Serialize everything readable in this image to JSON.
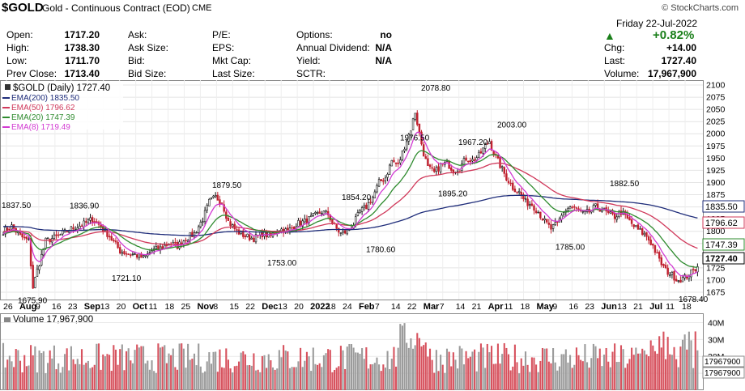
{
  "header": {
    "symbol": "$GOLD",
    "description": "Gold - Continuous Contract (EOD)",
    "exchange": "CME",
    "watermark": "© StockCharts.com",
    "date": "Friday  22-Jul-2022",
    "change_pct": "+0.82%",
    "up_color": "#1a7f1a"
  },
  "quote": {
    "col1": [
      [
        "Open:",
        "1717.20"
      ],
      [
        "High:",
        "1738.30"
      ],
      [
        "Low:",
        "1711.70"
      ],
      [
        "Prev Close:",
        "1713.40"
      ]
    ],
    "col2": [
      [
        "Ask:",
        ""
      ],
      [
        "Ask Size:",
        ""
      ],
      [
        "Bid:",
        ""
      ],
      [
        "Bid Size:",
        ""
      ]
    ],
    "col3": [
      [
        "P/E:",
        ""
      ],
      [
        "EPS:",
        ""
      ],
      [
        "Mkt Cap:",
        ""
      ],
      [
        "Last Size:",
        ""
      ]
    ],
    "col4": [
      [
        "Options:",
        "no"
      ],
      [
        "Annual Dividend:",
        "N/A"
      ],
      [
        "Yield:",
        "N/A"
      ],
      [
        "SCTR:",
        ""
      ]
    ],
    "col5": [
      [
        "Chg:",
        "+14.00"
      ],
      [
        "Last:",
        "1727.40"
      ],
      [
        "Volume:",
        "17,967,900"
      ]
    ]
  },
  "chart_data": {
    "type": "line",
    "title": "$GOLD (Daily) 1727.40",
    "y_ticks": [
      1675,
      1700,
      1725,
      1750,
      1775,
      1800,
      1825,
      1850,
      1875,
      1900,
      1925,
      1950,
      1975,
      2000,
      2025,
      2050,
      2075,
      2100
    ],
    "ylim": [
      1660,
      2110
    ],
    "x_labels": [
      "26",
      "Aug",
      "9",
      "16",
      "23",
      "Sep",
      "13",
      "20",
      "Oct",
      "11",
      "18",
      "25",
      "Nov",
      "8",
      "15",
      "22",
      "Dec",
      "13",
      "20",
      "2022",
      "18",
      "24",
      "Feb",
      "7",
      "14",
      "22",
      "Mar",
      "7",
      "14",
      "21",
      "Apr",
      "11",
      "18",
      "May",
      "9",
      "16",
      "23",
      "Jun",
      "13",
      "21",
      "Jul",
      "11",
      "18"
    ],
    "legend": [
      {
        "name": "$GOLD (Daily) 1727.40",
        "color": "#000000"
      },
      {
        "name": "EMA(200) 1835.50",
        "color": "#1f2d7a"
      },
      {
        "name": "EMA(50) 1796.62",
        "color": "#d0385a"
      },
      {
        "name": "EMA(20) 1747.39",
        "color": "#2e8b2e"
      },
      {
        "name": "EMA(8) 1719.49",
        "color": "#d23ad2"
      }
    ],
    "annotations": [
      {
        "label": "1837.50",
        "value": 1837.5
      },
      {
        "label": "1675.90",
        "value": 1675.9
      },
      {
        "label": "1836.90",
        "value": 1836.9
      },
      {
        "label": "1721.10",
        "value": 1721.1
      },
      {
        "label": "1879.50",
        "value": 1879.5
      },
      {
        "label": "1753.00",
        "value": 1753.0
      },
      {
        "label": "1854.20",
        "value": 1854.2
      },
      {
        "label": "1780.60",
        "value": 1780.6
      },
      {
        "label": "1976.50",
        "value": 1976.5
      },
      {
        "label": "2078.80",
        "value": 2078.8
      },
      {
        "label": "1895.20",
        "value": 1895.2
      },
      {
        "label": "1967.20",
        "value": 1967.2
      },
      {
        "label": "2003.00",
        "value": 2003.0
      },
      {
        "label": "1785.00",
        "value": 1785.0
      },
      {
        "label": "1882.50",
        "value": 1882.5
      },
      {
        "label": "1678.40",
        "value": 1678.4
      }
    ],
    "right_labels": [
      {
        "label": "1835.50",
        "value": 1835.5,
        "color": "#1f2d7a"
      },
      {
        "label": "1796.62",
        "value": 1796.62,
        "color": "#d0385a"
      },
      {
        "label": "1747.39",
        "value": 1747.39,
        "color": "#2e8b2e"
      },
      {
        "label": "1727.40",
        "value": 1727.4,
        "color": "#000000"
      }
    ],
    "price_path": [
      [
        0,
        1800
      ],
      [
        4,
        1810
      ],
      [
        8,
        1790
      ],
      [
        12,
        1780
      ],
      [
        14,
        1685
      ],
      [
        16,
        1720
      ],
      [
        20,
        1780
      ],
      [
        26,
        1790
      ],
      [
        32,
        1805
      ],
      [
        38,
        1815
      ],
      [
        42,
        1825
      ],
      [
        46,
        1810
      ],
      [
        50,
        1790
      ],
      [
        55,
        1760
      ],
      [
        58,
        1755
      ],
      [
        62,
        1752
      ],
      [
        66,
        1745
      ],
      [
        70,
        1760
      ],
      [
        74,
        1765
      ],
      [
        78,
        1775
      ],
      [
        82,
        1770
      ],
      [
        86,
        1785
      ],
      [
        90,
        1795
      ],
      [
        94,
        1825
      ],
      [
        97,
        1860
      ],
      [
        100,
        1870
      ],
      [
        103,
        1860
      ],
      [
        106,
        1820
      ],
      [
        110,
        1800
      ],
      [
        114,
        1790
      ],
      [
        118,
        1785
      ],
      [
        122,
        1795
      ],
      [
        126,
        1790
      ],
      [
        130,
        1805
      ],
      [
        134,
        1800
      ],
      [
        138,
        1815
      ],
      [
        142,
        1820
      ],
      [
        146,
        1830
      ],
      [
        150,
        1840
      ],
      [
        153,
        1835
      ],
      [
        156,
        1810
      ],
      [
        159,
        1795
      ],
      [
        162,
        1800
      ],
      [
        165,
        1815
      ],
      [
        168,
        1840
      ],
      [
        171,
        1850
      ],
      [
        174,
        1870
      ],
      [
        177,
        1900
      ],
      [
        180,
        1910
      ],
      [
        183,
        1945
      ],
      [
        186,
        1935
      ],
      [
        189,
        1975
      ],
      [
        192,
        2010
      ],
      [
        194,
        2045
      ],
      [
        196,
        2000
      ],
      [
        198,
        1960
      ],
      [
        200,
        1930
      ],
      [
        203,
        1920
      ],
      [
        206,
        1935
      ],
      [
        209,
        1940
      ],
      [
        212,
        1925
      ],
      [
        215,
        1930
      ],
      [
        218,
        1950
      ],
      [
        221,
        1945
      ],
      [
        224,
        1955
      ],
      [
        227,
        1975
      ],
      [
        229,
        1985
      ],
      [
        231,
        1960
      ],
      [
        234,
        1935
      ],
      [
        237,
        1910
      ],
      [
        240,
        1890
      ],
      [
        243,
        1880
      ],
      [
        246,
        1860
      ],
      [
        249,
        1855
      ],
      [
        252,
        1840
      ],
      [
        255,
        1820
      ],
      [
        258,
        1805
      ],
      [
        261,
        1815
      ],
      [
        264,
        1840
      ],
      [
        267,
        1850
      ],
      [
        270,
        1845
      ],
      [
        273,
        1835
      ],
      [
        276,
        1840
      ],
      [
        279,
        1850
      ],
      [
        282,
        1845
      ],
      [
        285,
        1835
      ],
      [
        288,
        1830
      ],
      [
        291,
        1840
      ],
      [
        294,
        1825
      ],
      [
        297,
        1810
      ],
      [
        300,
        1800
      ],
      [
        303,
        1790
      ],
      [
        306,
        1770
      ],
      [
        309,
        1740
      ],
      [
        312,
        1720
      ],
      [
        315,
        1710
      ],
      [
        318,
        1700
      ],
      [
        321,
        1705
      ],
      [
        324,
        1715
      ],
      [
        327,
        1727
      ]
    ],
    "volume": {
      "label": "Volume 17,967,900",
      "y_ticks": [
        "40M",
        "30M",
        "20M",
        "10M"
      ],
      "right_labels": [
        "17967900",
        "17967900"
      ]
    }
  }
}
